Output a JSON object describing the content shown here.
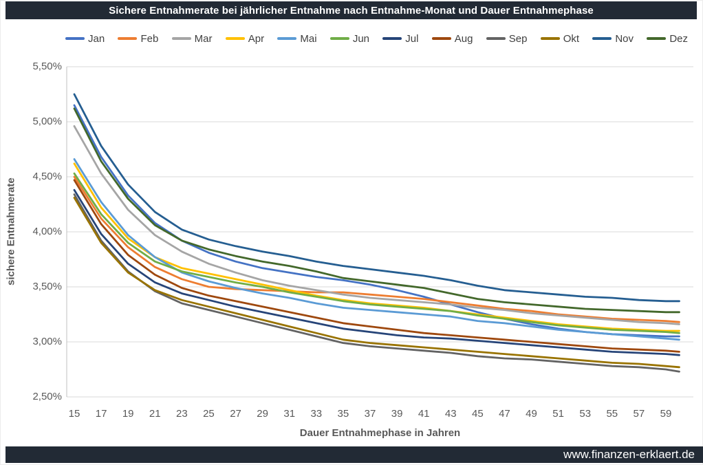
{
  "header": {
    "title": "Sichere Entnahmerate bei jährlicher Entnahme nach Entnahme-Monat und Dauer Entnahmephase"
  },
  "footer": {
    "site": "www.finanzen-erklaert.de"
  },
  "colors": {
    "bar_background": "#222A35",
    "grid": "#D9D9D9",
    "axis_line": "#BFBFBF",
    "axis_text": "#595959",
    "legend_text": "#404040"
  },
  "chart_data": {
    "type": "line",
    "title": "Sichere Entnahmerate bei jährlicher Entnahme nach Entnahme-Monat und Dauer Entnahmephase",
    "xlabel": "Dauer Entnahmephase in Jahren",
    "ylabel": "sichere Entnahmerate",
    "legend_position": "top",
    "grid": "horizontal-only",
    "x_range": [
      15,
      60
    ],
    "ylim": [
      2.5,
      5.5
    ],
    "x_ticks": [
      15,
      17,
      19,
      21,
      23,
      25,
      27,
      29,
      31,
      33,
      35,
      37,
      39,
      41,
      43,
      45,
      47,
      49,
      51,
      53,
      55,
      57,
      59
    ],
    "y_ticks": [
      {
        "label": "5,50%",
        "value": 5.5
      },
      {
        "label": "5,00%",
        "value": 5.0
      },
      {
        "label": "4,50%",
        "value": 4.5
      },
      {
        "label": "4,00%",
        "value": 4.0
      },
      {
        "label": "3,50%",
        "value": 3.5
      },
      {
        "label": "3,00%",
        "value": 3.0
      },
      {
        "label": "2,50%",
        "value": 2.5
      }
    ],
    "x": [
      15,
      17,
      19,
      21,
      23,
      25,
      27,
      29,
      31,
      33,
      35,
      37,
      39,
      41,
      43,
      45,
      47,
      49,
      51,
      53,
      55,
      57,
      59,
      60
    ],
    "series": [
      {
        "name": "Jan",
        "color": "#4472C4",
        "values": [
          5.15,
          4.68,
          4.33,
          4.08,
          3.92,
          3.81,
          3.73,
          3.67,
          3.63,
          3.59,
          3.56,
          3.52,
          3.47,
          3.41,
          3.34,
          3.27,
          3.21,
          3.16,
          3.12,
          3.09,
          3.07,
          3.06,
          3.05,
          3.05
        ]
      },
      {
        "name": "Feb",
        "color": "#ED7D31",
        "values": [
          4.5,
          4.12,
          3.86,
          3.68,
          3.57,
          3.5,
          3.48,
          3.47,
          3.46,
          3.45,
          3.45,
          3.43,
          3.41,
          3.39,
          3.36,
          3.33,
          3.3,
          3.28,
          3.25,
          3.23,
          3.21,
          3.2,
          3.19,
          3.18
        ]
      },
      {
        "name": "Mar",
        "color": "#A5A5A5",
        "values": [
          4.96,
          4.53,
          4.2,
          3.97,
          3.82,
          3.71,
          3.63,
          3.56,
          3.51,
          3.47,
          3.43,
          3.4,
          3.38,
          3.36,
          3.34,
          3.31,
          3.29,
          3.26,
          3.24,
          3.22,
          3.2,
          3.18,
          3.17,
          3.16
        ]
      },
      {
        "name": "Apr",
        "color": "#FFC000",
        "values": [
          4.62,
          4.22,
          3.94,
          3.77,
          3.67,
          3.62,
          3.57,
          3.52,
          3.47,
          3.42,
          3.38,
          3.35,
          3.33,
          3.31,
          3.28,
          3.25,
          3.22,
          3.19,
          3.16,
          3.14,
          3.12,
          3.11,
          3.1,
          3.1
        ]
      },
      {
        "name": "Mai",
        "color": "#5B9BD5",
        "values": [
          4.66,
          4.27,
          3.97,
          3.77,
          3.63,
          3.55,
          3.49,
          3.44,
          3.4,
          3.35,
          3.31,
          3.29,
          3.27,
          3.25,
          3.23,
          3.19,
          3.17,
          3.14,
          3.11,
          3.09,
          3.07,
          3.05,
          3.03,
          3.02
        ]
      },
      {
        "name": "Jun",
        "color": "#70AD47",
        "values": [
          4.53,
          4.16,
          3.9,
          3.73,
          3.64,
          3.59,
          3.54,
          3.5,
          3.45,
          3.41,
          3.37,
          3.34,
          3.32,
          3.3,
          3.28,
          3.24,
          3.21,
          3.18,
          3.15,
          3.13,
          3.11,
          3.1,
          3.09,
          3.08
        ]
      },
      {
        "name": "Jul",
        "color": "#264478",
        "values": [
          4.38,
          3.98,
          3.71,
          3.54,
          3.44,
          3.38,
          3.32,
          3.27,
          3.22,
          3.17,
          3.12,
          3.09,
          3.06,
          3.04,
          3.03,
          3.01,
          2.99,
          2.97,
          2.95,
          2.93,
          2.91,
          2.9,
          2.89,
          2.88
        ]
      },
      {
        "name": "Aug",
        "color": "#9E480E",
        "values": [
          4.47,
          4.07,
          3.79,
          3.61,
          3.49,
          3.42,
          3.37,
          3.32,
          3.27,
          3.22,
          3.17,
          3.14,
          3.11,
          3.08,
          3.06,
          3.04,
          3.02,
          3.0,
          2.98,
          2.96,
          2.94,
          2.93,
          2.92,
          2.91
        ]
      },
      {
        "name": "Sep",
        "color": "#636363",
        "values": [
          4.34,
          3.92,
          3.64,
          3.46,
          3.35,
          3.29,
          3.23,
          3.17,
          3.11,
          3.05,
          2.99,
          2.96,
          2.94,
          2.92,
          2.9,
          2.87,
          2.85,
          2.84,
          2.82,
          2.8,
          2.78,
          2.77,
          2.75,
          2.73
        ]
      },
      {
        "name": "Okt",
        "color": "#997300",
        "values": [
          4.31,
          3.9,
          3.63,
          3.47,
          3.38,
          3.32,
          3.26,
          3.2,
          3.14,
          3.08,
          3.02,
          2.99,
          2.97,
          2.95,
          2.93,
          2.91,
          2.89,
          2.87,
          2.85,
          2.83,
          2.81,
          2.8,
          2.78,
          2.77
        ]
      },
      {
        "name": "Nov",
        "color": "#255E91",
        "values": [
          5.25,
          4.78,
          4.43,
          4.18,
          4.02,
          3.93,
          3.87,
          3.82,
          3.78,
          3.73,
          3.69,
          3.66,
          3.63,
          3.6,
          3.56,
          3.51,
          3.47,
          3.45,
          3.43,
          3.41,
          3.4,
          3.38,
          3.37,
          3.37
        ]
      },
      {
        "name": "Dez",
        "color": "#43682B",
        "values": [
          5.12,
          4.64,
          4.3,
          4.06,
          3.92,
          3.84,
          3.78,
          3.73,
          3.69,
          3.64,
          3.58,
          3.55,
          3.52,
          3.49,
          3.44,
          3.39,
          3.36,
          3.34,
          3.32,
          3.3,
          3.29,
          3.28,
          3.27,
          3.27
        ]
      }
    ]
  }
}
